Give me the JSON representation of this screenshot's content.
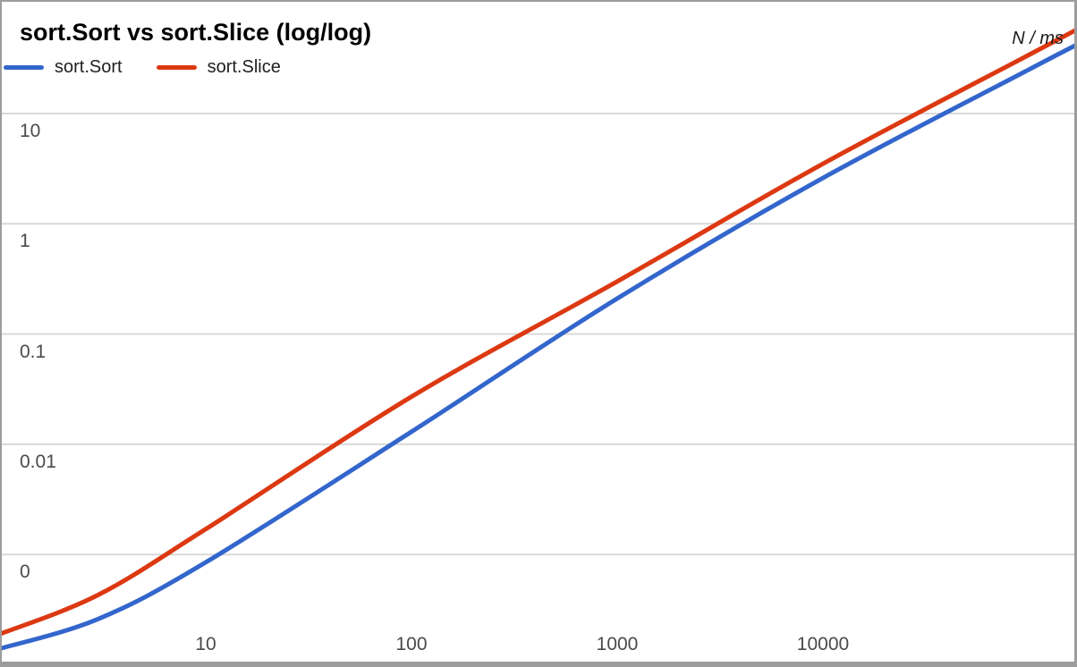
{
  "header": {
    "title": "sort.Sort vs sort.Slice (log/log)",
    "axis_note": "N / ms"
  },
  "legend": [
    {
      "label": "sort.Sort",
      "color": "#3366cc"
    },
    {
      "label": "sort.Slice",
      "color": "#dc3912"
    }
  ],
  "chart_data": {
    "type": "line",
    "title": "sort.Sort vs sort.Slice (log/log)",
    "xlabel": "N",
    "ylabel": "ms",
    "x_scale": "log",
    "y_scale": "log",
    "grid": true,
    "legend_position": "top-left",
    "axis_annotation": "N / ms",
    "x_range": [
      1,
      175000
    ],
    "y_range": [
      0.0001,
      100
    ],
    "x_ticks": [
      {
        "value": 10,
        "label": "10"
      },
      {
        "value": 100,
        "label": "100"
      },
      {
        "value": 1000,
        "label": "1000"
      },
      {
        "value": 10000,
        "label": "10000"
      }
    ],
    "y_ticks": [
      {
        "value": 10,
        "label": "10"
      },
      {
        "value": 1,
        "label": "1"
      },
      {
        "value": 0.1,
        "label": "0.1"
      },
      {
        "value": 0.01,
        "label": "0.01"
      },
      {
        "value": 0.001,
        "label": "0"
      }
    ],
    "series": [
      {
        "name": "sort.Sort",
        "color": "#3366cc",
        "x": [
          1,
          3,
          10,
          100,
          1000,
          10000,
          100000,
          175000
        ],
        "y": [
          0.00014,
          0.00026,
          0.00085,
          0.013,
          0.21,
          2.6,
          25,
          43
        ]
      },
      {
        "name": "sort.Slice",
        "color": "#dc3912",
        "x": [
          1,
          3,
          10,
          100,
          1000,
          10000,
          100000,
          175000
        ],
        "y": [
          0.00019,
          0.00043,
          0.0017,
          0.027,
          0.3,
          3.5,
          34,
          59
        ]
      }
    ]
  }
}
